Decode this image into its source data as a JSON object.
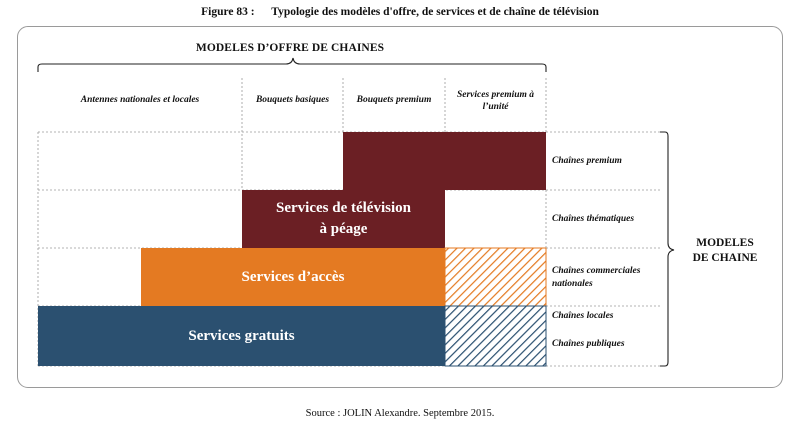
{
  "figure": {
    "number": "Figure 83 :",
    "title": "Typologie des modèles d'offre, de services et de chaîne de télévision"
  },
  "top_heading": "MODELES D’OFFRE DE CHAINES",
  "columns": [
    "Antennes nationales et locales",
    "Bouquets basiques",
    "Bouquets premium",
    "Services premium à l’unité"
  ],
  "side_heading": [
    "MODELES",
    "DE CHAINE"
  ],
  "rows": [
    "Chaînes premium",
    "Chaînes thématiques",
    "Chaînes commerciales nationales",
    "Chaînes locales",
    "Chaînes publiques"
  ],
  "services": {
    "peage": [
      "Services de télévision",
      "à péage"
    ],
    "acces": "Services d’accès",
    "gratuits": "Services gratuits"
  },
  "colors": {
    "premium": "#6b1f24",
    "peage": "#6b1f24",
    "acces": "#e47a22",
    "gratuits": "#2b5070"
  },
  "source": "Source : JOLIN Alexandre. Septembre 2015."
}
